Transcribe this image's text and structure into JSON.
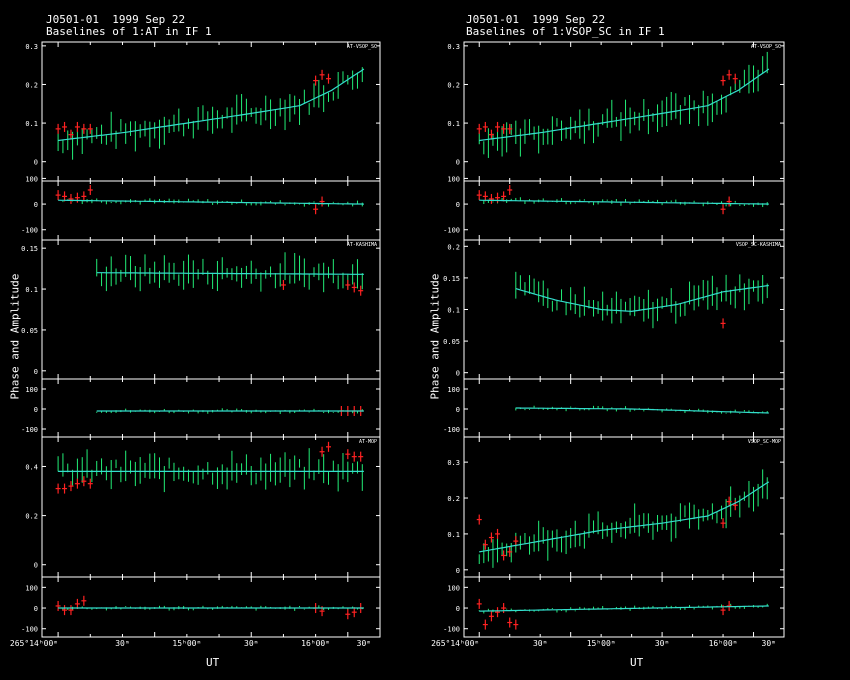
{
  "columns": [
    {
      "title_line1": "J0501-01  1999 Sep 22",
      "title_line2": "Baselines of 1:AT in IF 1",
      "ylabel": "Phase and Amplitude",
      "xlabel": "UT",
      "xticks": [
        "265°14ʰ00ᵐ",
        "30ᵐ",
        "15ʰ00ᵐ",
        "30ᵐ",
        "16ʰ00ᵐ",
        "30ᵐ"
      ]
    },
    {
      "title_line1": "J0501-01  1999 Sep 22",
      "title_line2": "Baselines of 1:VSOP_SC in IF 1",
      "ylabel": "Phase and Amplitude",
      "xlabel": "UT",
      "xticks": [
        "265°14ʰ00ᵐ",
        "30ᵐ",
        "15ʰ00ᵐ",
        "30ᵐ",
        "16ʰ00ᵐ",
        "30ᵐ"
      ]
    }
  ],
  "colors": {
    "data": "#22ee77",
    "flagged": "#ff2222",
    "model": "#33ddcc",
    "frame": "#ffffff"
  },
  "chart_data": [
    {
      "type": "line",
      "baseline": "AT-VSOP_SC",
      "x_unit": "minutes after 265/14:00 UT",
      "xlim": [
        -5,
        100
      ],
      "amplitude": {
        "ylim": [
          -0.05,
          0.31
        ],
        "yticks": [
          "0",
          "0.1",
          "0.2",
          "0.3"
        ],
        "model": {
          "x": [
            0,
            20,
            40,
            60,
            75,
            85,
            95
          ],
          "y": [
            0.055,
            0.075,
            0.1,
            0.125,
            0.145,
            0.185,
            0.24
          ]
        },
        "flagged": {
          "x": [
            0,
            2,
            4,
            6,
            8,
            10,
            80,
            82,
            84
          ],
          "y": [
            0.085,
            0.09,
            0.07,
            0.09,
            0.085,
            0.085,
            0.21,
            0.225,
            0.215
          ]
        }
      },
      "phase": {
        "ylim": [
          -140,
          90
        ],
        "yticks": [
          "100",
          "0",
          "-100"
        ],
        "model": {
          "x": [
            0,
            95
          ],
          "y": [
            15,
            0
          ]
        },
        "flagged": {
          "x": [
            0,
            2,
            4,
            6,
            8,
            10,
            80,
            82
          ],
          "y": [
            35,
            30,
            20,
            25,
            30,
            55,
            -20,
            10
          ]
        }
      }
    },
    {
      "type": "line",
      "baseline": "AT-KASHIMA",
      "x_unit": "minutes after 265/14:00 UT",
      "xlim": [
        -5,
        100
      ],
      "amplitude": {
        "ylim": [
          -0.01,
          0.16
        ],
        "yticks": [
          "0",
          "0.05",
          "0.1",
          "0.15"
        ],
        "model": {
          "x": [
            12,
            95
          ],
          "y": [
            0.12,
            0.118
          ]
        },
        "flagged": {
          "x": [
            70,
            90,
            92,
            94
          ],
          "y": [
            0.105,
            0.105,
            0.102,
            0.098
          ]
        }
      },
      "phase": {
        "ylim": [
          -140,
          150
        ],
        "yticks": [
          "100",
          "0",
          "-100"
        ],
        "model": {
          "x": [
            12,
            95
          ],
          "y": [
            -10,
            -10
          ]
        },
        "flagged": {
          "x": [
            88,
            90,
            92,
            94
          ],
          "y": [
            -10,
            -10,
            -10,
            -10
          ]
        }
      }
    },
    {
      "type": "line",
      "baseline": "AT-MOP",
      "x_unit": "minutes after 265/14:00 UT",
      "xlim": [
        -5,
        100
      ],
      "amplitude": {
        "ylim": [
          -0.05,
          0.52
        ],
        "yticks": [
          "0",
          "0.2",
          "0.4"
        ],
        "model": {
          "x": [
            0,
            95
          ],
          "y": [
            0.38,
            0.38
          ]
        },
        "flagged": {
          "x": [
            0,
            2,
            4,
            6,
            8,
            10,
            82,
            84,
            90,
            92,
            94
          ],
          "y": [
            0.31,
            0.31,
            0.32,
            0.33,
            0.34,
            0.33,
            0.46,
            0.48,
            0.45,
            0.44,
            0.44
          ]
        }
      },
      "phase": {
        "ylim": [
          -140,
          150
        ],
        "yticks": [
          "100",
          "0",
          "-100"
        ],
        "model": {
          "x": [
            0,
            95
          ],
          "y": [
            0,
            0
          ]
        },
        "flagged": {
          "x": [
            0,
            2,
            4,
            6,
            8,
            80,
            82,
            90,
            92,
            94
          ],
          "y": [
            10,
            -10,
            -10,
            20,
            35,
            0,
            -15,
            -30,
            -20,
            0
          ]
        }
      }
    },
    {
      "type": "line",
      "baseline": "AT-VSOP_SC",
      "x_unit": "minutes after 265/14:00 UT",
      "xlim": [
        -5,
        100
      ],
      "amplitude": {
        "ylim": [
          -0.05,
          0.31
        ],
        "yticks": [
          "0",
          "0.1",
          "0.2",
          "0.3"
        ],
        "model": {
          "x": [
            0,
            20,
            40,
            60,
            75,
            85,
            95
          ],
          "y": [
            0.055,
            0.075,
            0.1,
            0.125,
            0.145,
            0.185,
            0.24
          ]
        },
        "flagged": {
          "x": [
            0,
            2,
            4,
            6,
            8,
            10,
            80,
            82,
            84
          ],
          "y": [
            0.085,
            0.09,
            0.07,
            0.09,
            0.085,
            0.085,
            0.21,
            0.225,
            0.215
          ]
        }
      },
      "phase": {
        "ylim": [
          -140,
          90
        ],
        "yticks": [
          "100",
          "0",
          "-100"
        ],
        "model": {
          "x": [
            0,
            95
          ],
          "y": [
            15,
            0
          ]
        },
        "flagged": {
          "x": [
            0,
            2,
            4,
            6,
            8,
            10,
            80,
            82
          ],
          "y": [
            35,
            30,
            20,
            25,
            30,
            55,
            -20,
            10
          ]
        }
      }
    },
    {
      "type": "line",
      "baseline": "VSOP_SC-KASHIMA",
      "x_unit": "minutes after 265/14:00 UT",
      "xlim": [
        -5,
        100
      ],
      "amplitude": {
        "ylim": [
          -0.01,
          0.21
        ],
        "yticks": [
          "0",
          "0.05",
          "0.1",
          "0.15",
          "0.2"
        ],
        "model": {
          "x": [
            12,
            25,
            40,
            50,
            65,
            80,
            95
          ],
          "y": [
            0.133,
            0.115,
            0.1,
            0.097,
            0.108,
            0.128,
            0.138
          ]
        },
        "flagged": {
          "x": [
            80
          ],
          "y": [
            0.078
          ]
        }
      },
      "phase": {
        "ylim": [
          -140,
          150
        ],
        "yticks": [
          "100",
          "0",
          "-100"
        ],
        "model": {
          "x": [
            12,
            50,
            95
          ],
          "y": [
            5,
            0,
            -20
          ]
        },
        "flagged": {
          "x": [],
          "y": []
        }
      }
    },
    {
      "type": "line",
      "baseline": "VSOP_SC-MOP",
      "x_unit": "minutes after 265/14:00 UT",
      "xlim": [
        -5,
        100
      ],
      "amplitude": {
        "ylim": [
          -0.02,
          0.37
        ],
        "yticks": [
          "0",
          "0.1",
          "0.2",
          "0.3"
        ],
        "model": {
          "x": [
            0,
            20,
            40,
            60,
            75,
            85,
            95
          ],
          "y": [
            0.05,
            0.08,
            0.11,
            0.13,
            0.15,
            0.19,
            0.245
          ]
        },
        "flagged": {
          "x": [
            0,
            2,
            4,
            6,
            8,
            10,
            12,
            80,
            82,
            84
          ],
          "y": [
            0.14,
            0.07,
            0.09,
            0.1,
            0.04,
            0.05,
            0.08,
            0.13,
            0.19,
            0.18
          ]
        }
      },
      "phase": {
        "ylim": [
          -140,
          150
        ],
        "yticks": [
          "100",
          "0",
          "-100"
        ],
        "model": {
          "x": [
            0,
            95
          ],
          "y": [
            -15,
            10
          ]
        },
        "flagged": {
          "x": [
            0,
            2,
            4,
            6,
            8,
            10,
            12,
            80,
            82
          ],
          "y": [
            20,
            -80,
            -40,
            -20,
            0,
            -70,
            -80,
            -10,
            10
          ]
        }
      }
    }
  ]
}
